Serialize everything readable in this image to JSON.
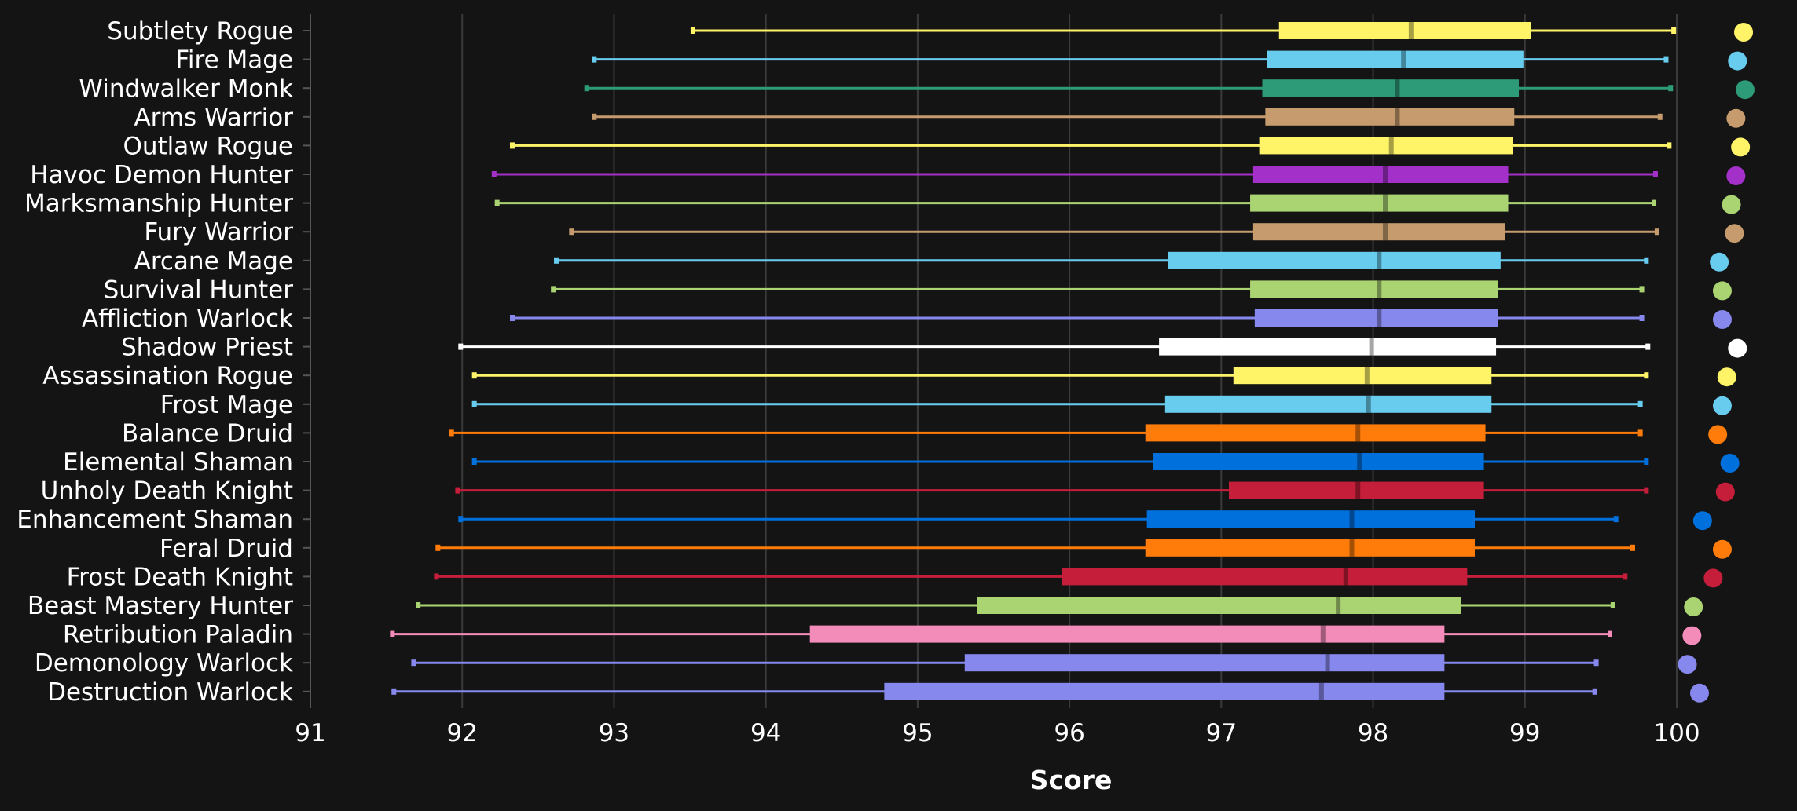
{
  "chart_data": {
    "type": "boxplot",
    "orientation": "horizontal",
    "xlabel": "Score",
    "xlim": [
      91,
      100
    ],
    "x_ticks": [
      "91",
      "92",
      "93",
      "94",
      "95",
      "96",
      "97",
      "98",
      "99",
      "100"
    ],
    "grid": true,
    "legend": "none",
    "series": [
      {
        "name": "Subtlety Rogue",
        "color": "#FFF468",
        "min": 93.52,
        "q1": 97.38,
        "median": 98.25,
        "q3": 99.04,
        "max": 99.98,
        "point": 100.44
      },
      {
        "name": "Fire Mage",
        "color": "#68CCEF",
        "min": 92.87,
        "q1": 97.3,
        "median": 98.2,
        "q3": 98.99,
        "max": 99.93,
        "point": 100.4
      },
      {
        "name": "Windwalker Monk",
        "color": "#2D9B78",
        "min": 92.82,
        "q1": 97.27,
        "median": 98.16,
        "q3": 98.96,
        "max": 99.96,
        "point": 100.45
      },
      {
        "name": "Arms Warrior",
        "color": "#C69B6D",
        "min": 92.87,
        "q1": 97.29,
        "median": 98.16,
        "q3": 98.93,
        "max": 99.89,
        "point": 100.39
      },
      {
        "name": "Outlaw Rogue",
        "color": "#FFF468",
        "min": 92.33,
        "q1": 97.25,
        "median": 98.12,
        "q3": 98.92,
        "max": 99.95,
        "point": 100.42
      },
      {
        "name": "Havoc Demon Hunter",
        "color": "#A330C9",
        "min": 92.21,
        "q1": 97.21,
        "median": 98.08,
        "q3": 98.89,
        "max": 99.86,
        "point": 100.39
      },
      {
        "name": "Marksmanship Hunter",
        "color": "#AAD372",
        "min": 92.23,
        "q1": 97.19,
        "median": 98.08,
        "q3": 98.89,
        "max": 99.85,
        "point": 100.36
      },
      {
        "name": "Fury Warrior",
        "color": "#C69B6D",
        "min": 92.72,
        "q1": 97.21,
        "median": 98.08,
        "q3": 98.87,
        "max": 99.87,
        "point": 100.38
      },
      {
        "name": "Arcane Mage",
        "color": "#68CCEF",
        "min": 92.62,
        "q1": 96.65,
        "median": 98.04,
        "q3": 98.84,
        "max": 99.8,
        "point": 100.28
      },
      {
        "name": "Survival Hunter",
        "color": "#AAD372",
        "min": 92.6,
        "q1": 97.19,
        "median": 98.04,
        "q3": 98.82,
        "max": 99.77,
        "point": 100.3
      },
      {
        "name": "Affliction Warlock",
        "color": "#8788EE",
        "min": 92.33,
        "q1": 97.22,
        "median": 98.04,
        "q3": 98.82,
        "max": 99.77,
        "point": 100.3
      },
      {
        "name": "Shadow Priest",
        "color": "#FFFFFF",
        "min": 91.99,
        "q1": 96.59,
        "median": 97.99,
        "q3": 98.81,
        "max": 99.81,
        "point": 100.4
      },
      {
        "name": "Assassination Rogue",
        "color": "#FFF468",
        "min": 92.08,
        "q1": 97.08,
        "median": 97.96,
        "q3": 98.78,
        "max": 99.8,
        "point": 100.33
      },
      {
        "name": "Frost Mage",
        "color": "#68CCEF",
        "min": 92.08,
        "q1": 96.63,
        "median": 97.97,
        "q3": 98.78,
        "max": 99.76,
        "point": 100.3
      },
      {
        "name": "Balance Druid",
        "color": "#FF7C0A",
        "min": 91.93,
        "q1": 96.5,
        "median": 97.9,
        "q3": 98.74,
        "max": 99.76,
        "point": 100.27
      },
      {
        "name": "Elemental Shaman",
        "color": "#0070DD",
        "min": 92.08,
        "q1": 96.55,
        "median": 97.91,
        "q3": 98.73,
        "max": 99.8,
        "point": 100.35
      },
      {
        "name": "Unholy Death Knight",
        "color": "#C41E3A",
        "min": 91.97,
        "q1": 97.05,
        "median": 97.9,
        "q3": 98.73,
        "max": 99.8,
        "point": 100.32
      },
      {
        "name": "Enhancement Shaman",
        "color": "#0070DD",
        "min": 91.99,
        "q1": 96.51,
        "median": 97.86,
        "q3": 98.67,
        "max": 99.6,
        "point": 100.17
      },
      {
        "name": "Feral Druid",
        "color": "#FF7C0A",
        "min": 91.84,
        "q1": 96.5,
        "median": 97.86,
        "q3": 98.67,
        "max": 99.71,
        "point": 100.3
      },
      {
        "name": "Frost Death Knight",
        "color": "#C41E3A",
        "min": 91.83,
        "q1": 95.95,
        "median": 97.82,
        "q3": 98.62,
        "max": 99.66,
        "point": 100.24
      },
      {
        "name": "Beast Mastery Hunter",
        "color": "#AAD372",
        "min": 91.71,
        "q1": 95.39,
        "median": 97.77,
        "q3": 98.58,
        "max": 99.58,
        "point": 100.11
      },
      {
        "name": "Retribution Paladin",
        "color": "#F48CBA",
        "min": 91.54,
        "q1": 94.29,
        "median": 97.67,
        "q3": 98.47,
        "max": 99.56,
        "point": 100.1
      },
      {
        "name": "Demonology Warlock",
        "color": "#8788EE",
        "min": 91.68,
        "q1": 95.31,
        "median": 97.7,
        "q3": 98.47,
        "max": 99.47,
        "point": 100.07
      },
      {
        "name": "Destruction Warlock",
        "color": "#8788EE",
        "min": 91.55,
        "q1": 94.78,
        "median": 97.66,
        "q3": 98.47,
        "max": 99.46,
        "point": 100.15
      }
    ]
  },
  "colors": {
    "background": "#141414",
    "grid": "#3a3a3a",
    "axis": "#555555",
    "text": "#ffffff"
  }
}
